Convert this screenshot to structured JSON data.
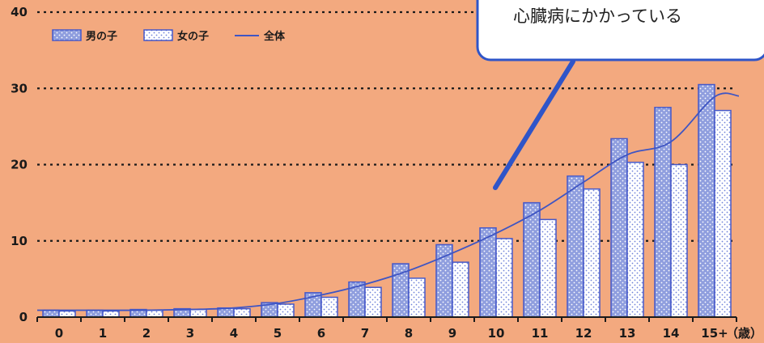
{
  "chart_data": {
    "type": "bar",
    "categories": [
      "0",
      "1",
      "2",
      "3",
      "4",
      "5",
      "6",
      "7",
      "8",
      "9",
      "10",
      "11",
      "12",
      "13",
      "14",
      "15+"
    ],
    "x_unit": "（歳）",
    "ylim": [
      0,
      40
    ],
    "yticks": [
      0,
      10,
      20,
      30,
      40
    ],
    "grid": true,
    "legend_position": "top-left",
    "series": [
      {
        "name": "男の子",
        "kind": "bar",
        "pattern": "dots-on-blue",
        "values": [
          0.9,
          0.9,
          1.0,
          1.1,
          1.2,
          1.9,
          3.2,
          4.6,
          7.0,
          9.5,
          11.7,
          15.0,
          18.5,
          23.4,
          27.5,
          30.5
        ]
      },
      {
        "name": "女の子",
        "kind": "bar",
        "pattern": "dots-on-white",
        "values": [
          0.8,
          0.8,
          0.9,
          1.0,
          1.1,
          1.7,
          2.6,
          3.9,
          5.1,
          7.2,
          10.3,
          12.8,
          16.8,
          20.3,
          20.0,
          27.1
        ]
      },
      {
        "name": "全体",
        "kind": "line",
        "values": [
          0.9,
          0.9,
          0.9,
          1.0,
          1.2,
          1.8,
          2.9,
          4.3,
          6.1,
          8.4,
          11.0,
          14.0,
          17.7,
          21.3,
          23.0,
          28.9
        ]
      }
    ],
    "annotation": "心臓病にかかっている"
  },
  "colors": {
    "background": "#f3a97f",
    "bar_blue": "#8f9ede",
    "bar_white": "#ffffff",
    "bar_edge": "#4659c9",
    "line": "#3f55c3",
    "grid": "#1a1a1a",
    "callout_border": "#2f55c8",
    "callout_fill": "#ffffff"
  }
}
